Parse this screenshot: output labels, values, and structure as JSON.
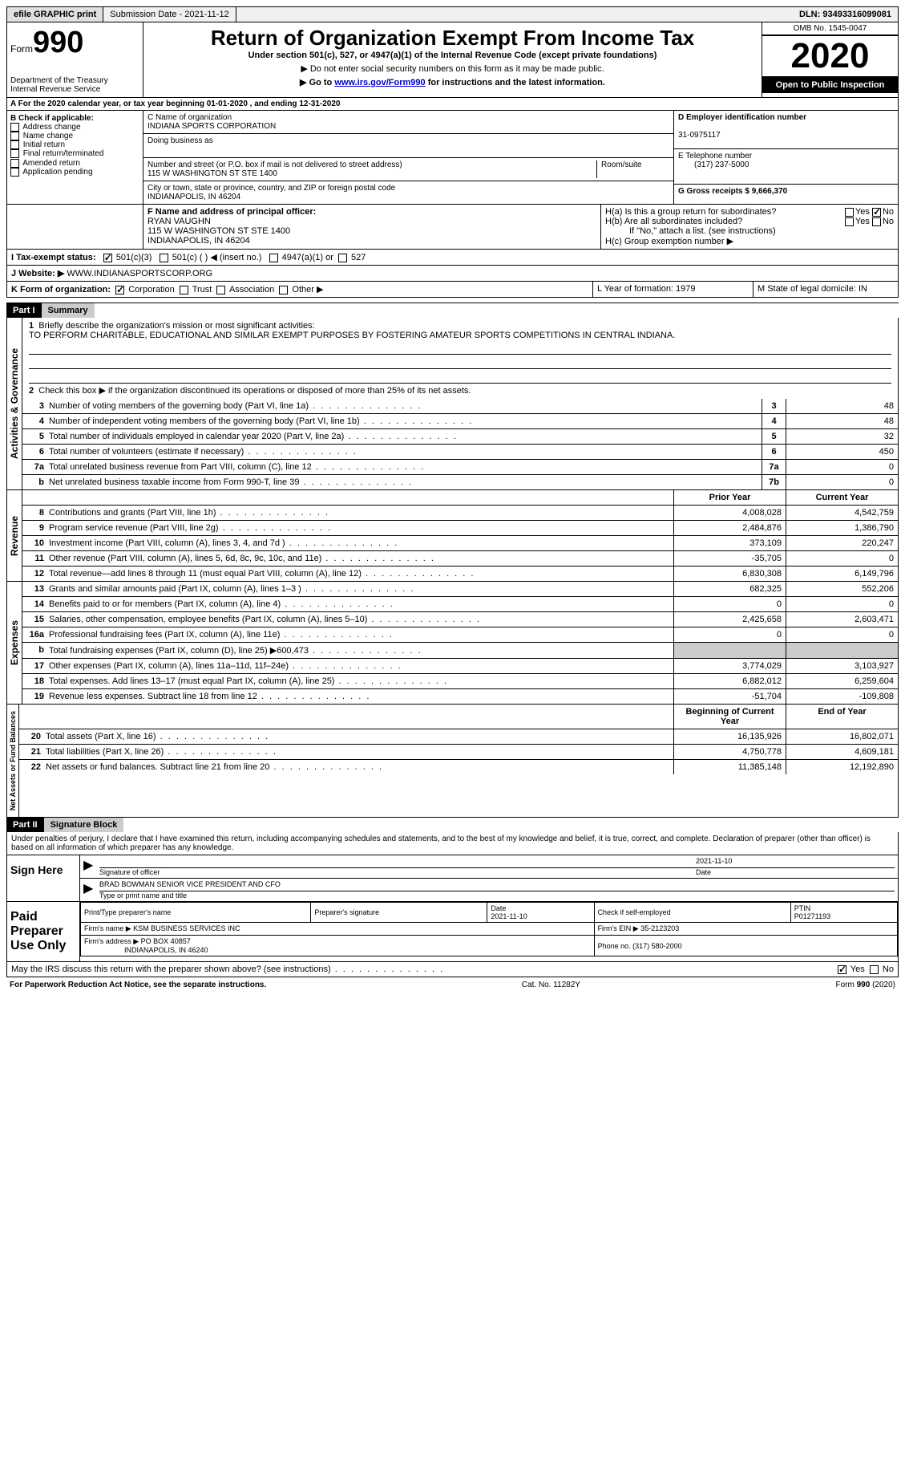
{
  "topbar": {
    "efile": "efile GRAPHIC print",
    "submission_label": "Submission Date - 2021-11-12",
    "dln": "DLN: 93493316099081"
  },
  "header": {
    "form_label": "Form",
    "form_num": "990",
    "dept": "Department of the Treasury",
    "irs": "Internal Revenue Service",
    "title": "Return of Organization Exempt From Income Tax",
    "subtitle": "Under section 501(c), 527, or 4947(a)(1) of the Internal Revenue Code (except private foundations)",
    "note1": "▶ Do not enter social security numbers on this form as it may be made public.",
    "note2_pre": "▶ Go to ",
    "note2_link": "www.irs.gov/Form990",
    "note2_post": " for instructions and the latest information.",
    "omb": "OMB No. 1545-0047",
    "year": "2020",
    "open": "Open to Public Inspection"
  },
  "period": {
    "line": "A For the 2020 calendar year, or tax year beginning 01-01-2020   , and ending 12-31-2020"
  },
  "boxB": {
    "label": "B Check if applicable:",
    "opts": [
      "Address change",
      "Name change",
      "Initial return",
      "Final return/terminated",
      "Amended return",
      "Application pending"
    ]
  },
  "boxC": {
    "name_label": "C Name of organization",
    "name": "INDIANA SPORTS CORPORATION",
    "dba_label": "Doing business as",
    "addr_label": "Number and street (or P.O. box if mail is not delivered to street address)",
    "room_label": "Room/suite",
    "addr": "115 W WASHINGTON ST STE 1400",
    "city_label": "City or town, state or province, country, and ZIP or foreign postal code",
    "city": "INDIANAPOLIS, IN  46204"
  },
  "boxD": {
    "label": "D Employer identification number",
    "val": "31-0975117"
  },
  "boxE": {
    "label": "E Telephone number",
    "val": "(317) 237-5000"
  },
  "boxG": {
    "label": "G Gross receipts $ 9,666,370"
  },
  "boxF": {
    "label": "F  Name and address of principal officer:",
    "name": "RYAN VAUGHN",
    "addr1": "115 W WASHINGTON ST STE 1400",
    "addr2": "INDIANAPOLIS, IN  46204"
  },
  "boxH": {
    "a": "H(a)  Is this a group return for subordinates?",
    "b": "H(b)  Are all subordinates included?",
    "note": "If \"No,\" attach a list. (see instructions)",
    "c": "H(c)  Group exemption number ▶"
  },
  "boxI": {
    "label": "I  Tax-exempt status:",
    "opt1": "501(c)(3)",
    "opt2": "501(c) (  ) ◀ (insert no.)",
    "opt3": "4947(a)(1) or",
    "opt4": "527"
  },
  "boxJ": {
    "label": "J  Website: ▶",
    "val": "WWW.INDIANASPORTSCORP.ORG"
  },
  "boxK": {
    "label": "K Form of organization:",
    "opts": [
      "Corporation",
      "Trust",
      "Association",
      "Other ▶"
    ]
  },
  "boxL": {
    "label": "L Year of formation: 1979"
  },
  "boxM": {
    "label": "M State of legal domicile: IN"
  },
  "part1": {
    "header": "Part I",
    "title": "Summary",
    "q1": "Briefly describe the organization's mission or most significant activities:",
    "mission": "TO PERFORM CHARITABLE, EDUCATIONAL AND SIMILAR EXEMPT PURPOSES BY FOSTERING AMATEUR SPORTS COMPETITIONS IN CENTRAL INDIANA.",
    "q2": "Check this box ▶    if the organization discontinued its operations or disposed of more than 25% of its net assets.",
    "gov_label": "Activities & Governance",
    "rev_label": "Revenue",
    "exp_label": "Expenses",
    "net_label": "Net Assets or Fund Balances",
    "lines_gov": [
      {
        "n": "3",
        "t": "Number of voting members of the governing body (Part VI, line 1a)",
        "box": "3",
        "v": "48"
      },
      {
        "n": "4",
        "t": "Number of independent voting members of the governing body (Part VI, line 1b)",
        "box": "4",
        "v": "48"
      },
      {
        "n": "5",
        "t": "Total number of individuals employed in calendar year 2020 (Part V, line 2a)",
        "box": "5",
        "v": "32"
      },
      {
        "n": "6",
        "t": "Total number of volunteers (estimate if necessary)",
        "box": "6",
        "v": "450"
      },
      {
        "n": "7a",
        "t": "Total unrelated business revenue from Part VIII, column (C), line 12",
        "box": "7a",
        "v": "0"
      },
      {
        "n": "b",
        "t": "Net unrelated business taxable income from Form 990-T, line 39",
        "box": "7b",
        "v": "0"
      }
    ],
    "col_prior": "Prior Year",
    "col_current": "Current Year",
    "lines_rev": [
      {
        "n": "8",
        "t": "Contributions and grants (Part VIII, line 1h)",
        "p": "4,008,028",
        "c": "4,542,759"
      },
      {
        "n": "9",
        "t": "Program service revenue (Part VIII, line 2g)",
        "p": "2,484,876",
        "c": "1,386,790"
      },
      {
        "n": "10",
        "t": "Investment income (Part VIII, column (A), lines 3, 4, and 7d )",
        "p": "373,109",
        "c": "220,247"
      },
      {
        "n": "11",
        "t": "Other revenue (Part VIII, column (A), lines 5, 6d, 8c, 9c, 10c, and 11e)",
        "p": "-35,705",
        "c": "0"
      },
      {
        "n": "12",
        "t": "Total revenue—add lines 8 through 11 (must equal Part VIII, column (A), line 12)",
        "p": "6,830,308",
        "c": "6,149,796"
      }
    ],
    "lines_exp": [
      {
        "n": "13",
        "t": "Grants and similar amounts paid (Part IX, column (A), lines 1–3 )",
        "p": "682,325",
        "c": "552,206"
      },
      {
        "n": "14",
        "t": "Benefits paid to or for members (Part IX, column (A), line 4)",
        "p": "0",
        "c": "0"
      },
      {
        "n": "15",
        "t": "Salaries, other compensation, employee benefits (Part IX, column (A), lines 5–10)",
        "p": "2,425,658",
        "c": "2,603,471"
      },
      {
        "n": "16a",
        "t": "Professional fundraising fees (Part IX, column (A), line 11e)",
        "p": "0",
        "c": "0"
      },
      {
        "n": "b",
        "t": "Total fundraising expenses (Part IX, column (D), line 25) ▶600,473",
        "p": "",
        "c": "",
        "shaded": true
      },
      {
        "n": "17",
        "t": "Other expenses (Part IX, column (A), lines 11a–11d, 11f–24e)",
        "p": "3,774,029",
        "c": "3,103,927"
      },
      {
        "n": "18",
        "t": "Total expenses. Add lines 13–17 (must equal Part IX, column (A), line 25)",
        "p": "6,882,012",
        "c": "6,259,604"
      },
      {
        "n": "19",
        "t": "Revenue less expenses. Subtract line 18 from line 12",
        "p": "-51,704",
        "c": "-109,808"
      }
    ],
    "col_begin": "Beginning of Current Year",
    "col_end": "End of Year",
    "lines_net": [
      {
        "n": "20",
        "t": "Total assets (Part X, line 16)",
        "p": "16,135,926",
        "c": "16,802,071"
      },
      {
        "n": "21",
        "t": "Total liabilities (Part X, line 26)",
        "p": "4,750,778",
        "c": "4,609,181"
      },
      {
        "n": "22",
        "t": "Net assets or fund balances. Subtract line 21 from line 20",
        "p": "11,385,148",
        "c": "12,192,890"
      }
    ]
  },
  "part2": {
    "header": "Part II",
    "title": "Signature Block",
    "decl": "Under penalties of perjury, I declare that I have examined this return, including accompanying schedules and statements, and to the best of my knowledge and belief, it is true, correct, and complete. Declaration of preparer (other than officer) is based on all information of which preparer has any knowledge.",
    "sign_here": "Sign Here",
    "sig_officer": "Signature of officer",
    "sig_date": "Date",
    "sig_date_val": "2021-11-10",
    "officer_name": "BRAD BOWMAN  SENIOR VICE PRESIDENT AND CFO",
    "type_name": "Type or print name and title",
    "paid_prep": "Paid Preparer Use Only",
    "prep_name_label": "Print/Type preparer's name",
    "prep_sig_label": "Preparer's signature",
    "prep_date_label": "Date",
    "prep_date": "2021-11-10",
    "self_emp": "Check        if self-employed",
    "ptin_label": "PTIN",
    "ptin": "P01271193",
    "firm_name_label": "Firm's name   ▶",
    "firm_name": "KSM BUSINESS SERVICES INC",
    "firm_ein_label": "Firm's EIN ▶",
    "firm_ein": "35-2123203",
    "firm_addr_label": "Firm's address ▶",
    "firm_addr1": "PO BOX 40857",
    "firm_addr2": "INDIANAPOLIS, IN  46240",
    "firm_phone_label": "Phone no.",
    "firm_phone": "(317) 580-2000",
    "discuss": "May the IRS discuss this return with the preparer shown above? (see instructions)"
  },
  "footer": {
    "pra": "For Paperwork Reduction Act Notice, see the separate instructions.",
    "cat": "Cat. No. 11282Y",
    "form": "Form 990 (2020)"
  }
}
